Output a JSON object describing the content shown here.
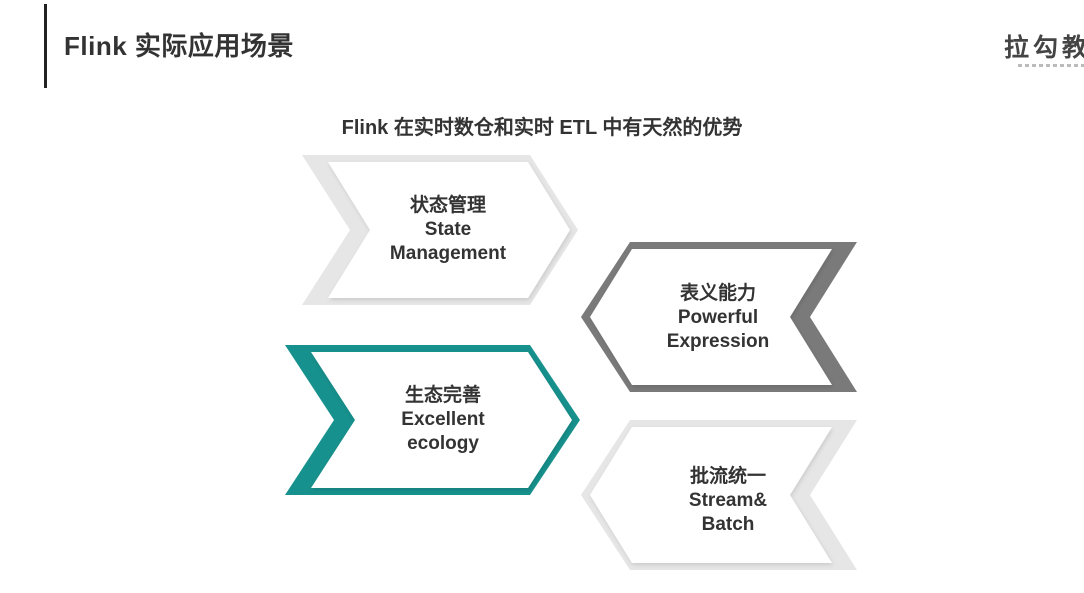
{
  "header": {
    "title": "Flink 实际应用场景",
    "logo_text": "拉勾教"
  },
  "subtitle": "Flink 在实时数仓和实时 ETL 中有天然的优势",
  "cards": [
    {
      "zh": "状态管理",
      "en1": "State",
      "en2": "Management",
      "color": "#e6e6e6"
    },
    {
      "zh": "表义能力",
      "en1": "Powerful",
      "en2": "Expression",
      "color": "#7a7a7a"
    },
    {
      "zh": "生态完善",
      "en1": "Excellent",
      "en2": "ecology",
      "color": "#17918d"
    },
    {
      "zh": "批流统一",
      "en1": "Stream&",
      "en2": "Batch",
      "color": "#e6e6e6"
    }
  ]
}
